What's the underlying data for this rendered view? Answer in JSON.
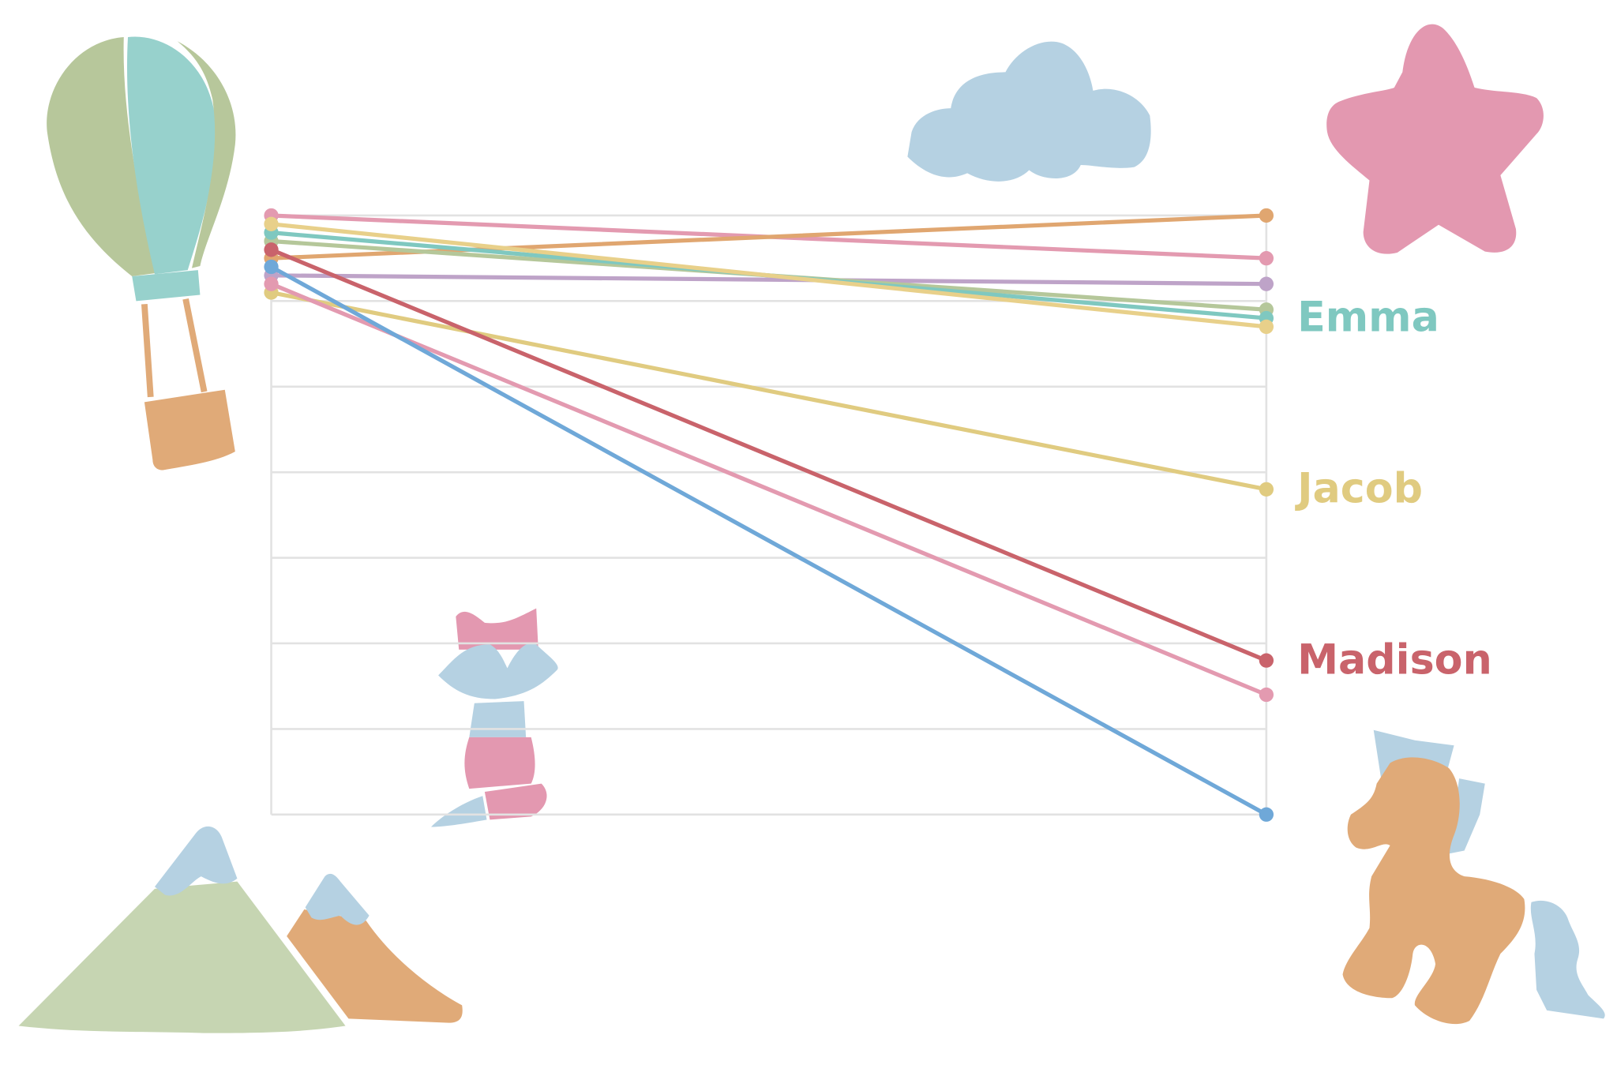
{
  "chart_data": {
    "type": "slope",
    "categories": [
      null,
      null
    ],
    "ylim": [
      0,
      7
    ],
    "yticks": [
      0,
      1,
      2,
      3,
      4,
      5,
      6,
      7
    ],
    "grid": true,
    "series": [
      {
        "color": "#e39ab0",
        "values": [
          7.0,
          6.5
        ]
      },
      {
        "color": "#e0a670",
        "values": [
          6.5,
          7.0
        ]
      },
      {
        "color": "#bea3c8",
        "values": [
          6.3,
          6.2
        ]
      },
      {
        "color": "#b5c79a",
        "values": [
          6.7,
          5.9
        ]
      },
      {
        "name": "Emma",
        "color": "#7fc8c0",
        "values": [
          6.8,
          5.8
        ]
      },
      {
        "color": "#e8d08a",
        "values": [
          6.9,
          5.7
        ]
      },
      {
        "name": "Jacob",
        "color": "#e0cb80",
        "values": [
          6.1,
          3.8
        ]
      },
      {
        "name": "Madison",
        "color": "#c9636b",
        "values": [
          6.6,
          1.8
        ]
      },
      {
        "color": "#e39ab0",
        "values": [
          6.2,
          1.4
        ]
      },
      {
        "color": "#6fa8d8",
        "values": [
          6.4,
          0
        ]
      }
    ]
  }
}
